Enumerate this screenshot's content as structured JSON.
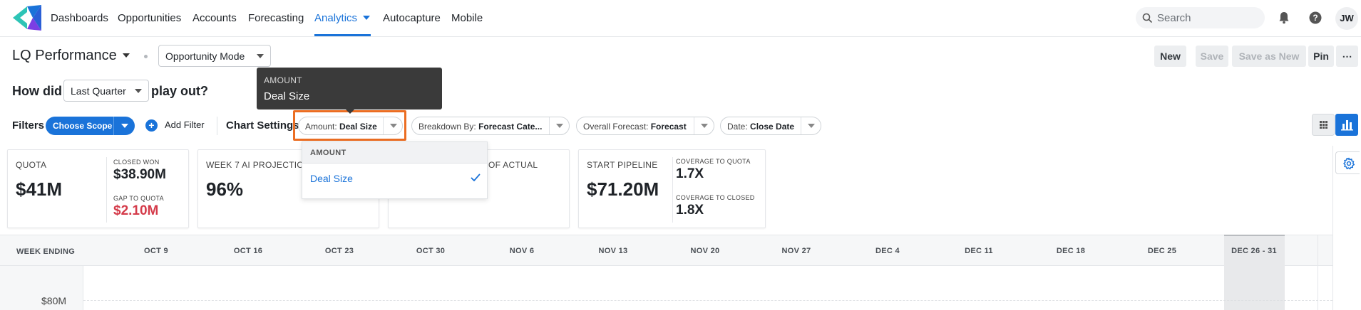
{
  "nav": {
    "items": [
      "Dashboards",
      "Opportunities",
      "Accounts",
      "Forecasting",
      "Analytics",
      "Autocapture",
      "Mobile"
    ],
    "active": "Analytics",
    "search_placeholder": "Search",
    "avatar_initials": "JW",
    "accent_color": "#1a73d9"
  },
  "header": {
    "title": "LQ Performance",
    "mode": "Opportunity Mode",
    "actions": {
      "new": "New",
      "save": "Save",
      "save_as_new": "Save as New",
      "pin": "Pin",
      "more": "⋯"
    }
  },
  "question": {
    "prefix": "How did",
    "period": "Last Quarter",
    "suffix": "play out?"
  },
  "tooltip": {
    "category": "AMOUNT",
    "value": "Deal Size"
  },
  "filters": {
    "label": "Filters",
    "scope": "Choose Scope",
    "add_filter": "Add Filter",
    "chart_settings_label": "Chart Settings",
    "chips": {
      "amount": {
        "key": "Amount:",
        "value": "Deal Size"
      },
      "breakdown": {
        "key": "Breakdown By:",
        "value": "Forecast Cate..."
      },
      "overall": {
        "key": "Overall Forecast:",
        "value": "Forecast"
      },
      "date": {
        "key": "Date:",
        "value": "Close Date"
      }
    }
  },
  "dropdown": {
    "header": "AMOUNT",
    "options": [
      "Deal Size"
    ],
    "selected": "Deal Size"
  },
  "cards": {
    "quota": {
      "label": "QUOTA",
      "value": "$41M",
      "closed_won_label": "CLOSED WON",
      "closed_won": "$38.90M",
      "gap_label": "GAP TO QUOTA",
      "gap": "$2.10M",
      "gap_color": "#d43b4a"
    },
    "projection": {
      "label": "WEEK 7 AI PROJECTION",
      "value": "96%"
    },
    "actual": {
      "label_fragment": "OF ACTUAL"
    },
    "pipeline": {
      "label": "START PIPELINE",
      "value": "$71.20M",
      "cov_quota_label": "COVERAGE TO QUOTA",
      "cov_quota": "1.7X",
      "cov_closed_label": "COVERAGE TO CLOSED",
      "cov_closed": "1.8X"
    }
  },
  "timeline": {
    "label": "WEEK ENDING",
    "weeks": [
      "OCT 9",
      "OCT 16",
      "OCT 23",
      "OCT 30",
      "NOV 6",
      "NOV 13",
      "NOV 20",
      "NOV 27",
      "DEC 4",
      "DEC 11",
      "DEC 18",
      "DEC 25",
      "DEC 26 - 31"
    ],
    "active_week": "DEC 26 - 31"
  },
  "chart": {
    "y_tick": "$80M"
  }
}
